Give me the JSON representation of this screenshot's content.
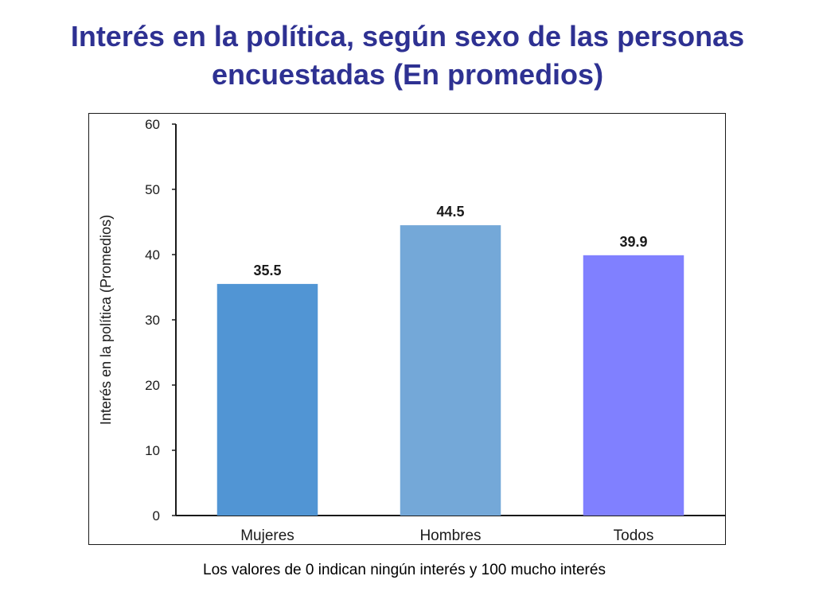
{
  "slide": {
    "title": "Interés en la política, según sexo de las personas encuestadas (En promedios)",
    "note": "Los valores de 0 indican ningún interés y 100 mucho interés"
  },
  "chart_data": {
    "type": "bar",
    "title": "",
    "xlabel": "",
    "ylabel": "Interés en la política (Promedios)",
    "categories": [
      "Mujeres",
      "Hombres",
      "Todos"
    ],
    "values": [
      35.5,
      44.5,
      39.9
    ],
    "data_labels": [
      "35.5",
      "44.5",
      "39.9"
    ],
    "ylim": [
      0,
      60
    ],
    "yticks": [
      0,
      10,
      20,
      30,
      40,
      50,
      60
    ],
    "grid": false,
    "legend": "none",
    "bar_colors": [
      "#5195d4",
      "#74a8d8",
      "#8080ff"
    ]
  },
  "colors": {
    "title": "#2e3192",
    "axis": "#1a1a1a",
    "text": "#1a1a1a"
  }
}
